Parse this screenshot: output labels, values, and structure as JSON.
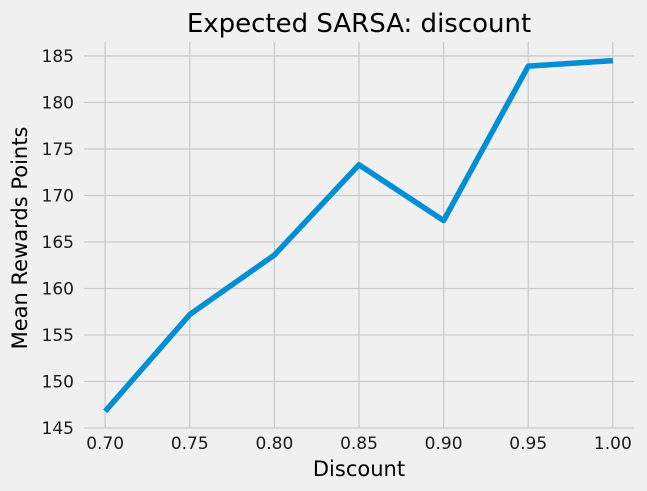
{
  "chart_data": {
    "type": "line",
    "title": "Expected SARSA: discount",
    "xlabel": "Discount",
    "ylabel": "Mean Rewards Points",
    "x": [
      0.7,
      0.75,
      0.8,
      0.85,
      0.9,
      0.95,
      1.0
    ],
    "series": [
      {
        "values": [
          146.8,
          157.2,
          163.6,
          173.3,
          167.3,
          183.9,
          184.5
        ],
        "color": "#008fd5"
      }
    ],
    "x_ticks": [
      "0.70",
      "0.75",
      "0.80",
      "0.85",
      "0.90",
      "0.95",
      "1.00"
    ],
    "y_ticks": [
      "145",
      "150",
      "155",
      "160",
      "165",
      "170",
      "175",
      "180",
      "185"
    ],
    "xlim": [
      0.6875,
      1.0125
    ],
    "ylim": [
      145,
      186.5
    ],
    "grid": true,
    "background": "#f0f0f0"
  }
}
